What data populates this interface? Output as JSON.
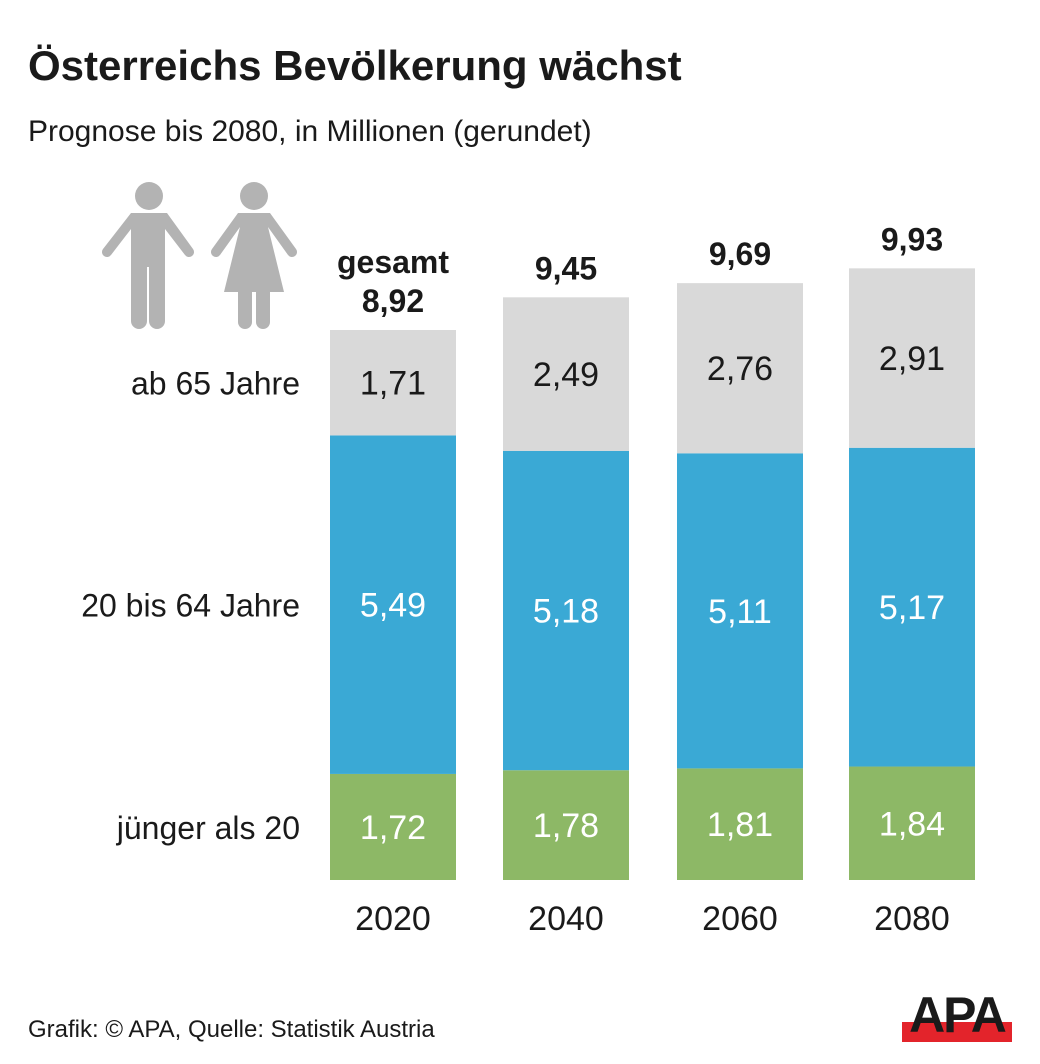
{
  "title": "Österreichs Bevölkerung wächst",
  "subtitle": "Prognose bis 2080, in Millionen (gerundet)",
  "footer": "Grafik: © APA, Quelle: Statistik Austria",
  "logo_text": "APA",
  "icons": [
    "man-icon",
    "woman-icon"
  ],
  "chart_data": {
    "type": "bar",
    "stacked": true,
    "categories": [
      "2020",
      "2040",
      "2060",
      "2080"
    ],
    "total_prefix": "gesamt",
    "totals": [
      "8,92",
      "9,45",
      "9,69",
      "9,93"
    ],
    "totals_values": [
      8.92,
      9.45,
      9.69,
      9.93
    ],
    "series": [
      {
        "name": "jünger als 20",
        "values": [
          1.72,
          1.78,
          1.81,
          1.84
        ],
        "labels": [
          "1,72",
          "1,78",
          "1,81",
          "1,84"
        ],
        "color": "#8db866",
        "label_color": "#ffffff"
      },
      {
        "name": "20 bis 64 Jahre",
        "values": [
          5.49,
          5.18,
          5.11,
          5.17
        ],
        "labels": [
          "5,49",
          "5,18",
          "5,11",
          "5,17"
        ],
        "color": "#3aa9d5",
        "label_color": "#ffffff"
      },
      {
        "name": "ab 65 Jahre",
        "values": [
          1.71,
          2.49,
          2.76,
          2.91
        ],
        "labels": [
          "1,71",
          "2,49",
          "2,76",
          "2,91"
        ],
        "color": "#d9d9d9",
        "label_color": "#1a1a1a"
      }
    ],
    "xlabel": "",
    "ylabel": "",
    "grid": false
  },
  "colors": {
    "logo_red": "#e3242b",
    "icon_grey": "#b3b3b3"
  }
}
